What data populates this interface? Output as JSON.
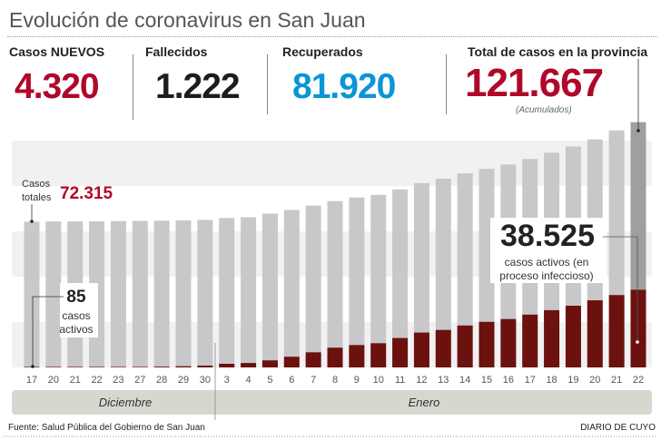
{
  "title": "Evolución de coronavirus en San Juan",
  "stats": {
    "new_cases": {
      "label": "Casos NUEVOS",
      "value": "4.320"
    },
    "deaths": {
      "label": "Fallecidos",
      "value": "1.222"
    },
    "recovered": {
      "label": "Recuperados",
      "value": "81.920"
    },
    "total": {
      "label": "Total de casos en la provincia",
      "value": "121.667",
      "note": "(Acumulados)"
    }
  },
  "colors": {
    "red": "#b0072a",
    "dark_red": "#6b120f",
    "blue": "#0b95d4",
    "bar_gray": "#c8c8ca",
    "last_bar_gray": "#9f9fa2",
    "band": "#f1f1f2",
    "month_bar": "#d8d7cf"
  },
  "chart_data": {
    "type": "bar",
    "stacked": "overlay",
    "categories": [
      "17",
      "20",
      "21",
      "22",
      "23",
      "27",
      "28",
      "29",
      "30",
      "3",
      "4",
      "5",
      "6",
      "7",
      "8",
      "9",
      "10",
      "11",
      "12",
      "13",
      "14",
      "15",
      "16",
      "17",
      "18",
      "19",
      "20",
      "21",
      "22"
    ],
    "months": [
      {
        "label": "Diciembre",
        "count": 9
      },
      {
        "label": "Enero",
        "count": 20
      }
    ],
    "series": [
      {
        "name": "Casos totales",
        "values": [
          72315,
          72400,
          72450,
          72500,
          72600,
          72700,
          72800,
          72900,
          73200,
          74100,
          74500,
          76300,
          78100,
          80300,
          82500,
          84300,
          85600,
          88300,
          91400,
          93600,
          96300,
          98500,
          100700,
          103400,
          106500,
          109600,
          113100,
          117600,
          121667
        ]
      },
      {
        "name": "casos activos",
        "values": [
          85,
          90,
          100,
          120,
          150,
          250,
          400,
          600,
          900,
          1800,
          2200,
          3500,
          5300,
          7500,
          9800,
          11100,
          12000,
          14600,
          17300,
          18600,
          20800,
          22600,
          24000,
          26200,
          28400,
          30600,
          33300,
          35900,
          38525
        ]
      }
    ],
    "annotations": {
      "first_total": {
        "label": "Casos totales",
        "value": "72.315"
      },
      "first_active": {
        "value": "85",
        "label": "casos activos"
      },
      "last_active": {
        "value": "38.525",
        "label": "casos activos (en proceso infeccioso)"
      }
    },
    "ylim": [
      0,
      125000
    ],
    "grid": false
  },
  "footer": {
    "source": "Fuente: Salud Pública del Gobierno de San Juan",
    "brand": "DIARIO DE CUYO"
  }
}
